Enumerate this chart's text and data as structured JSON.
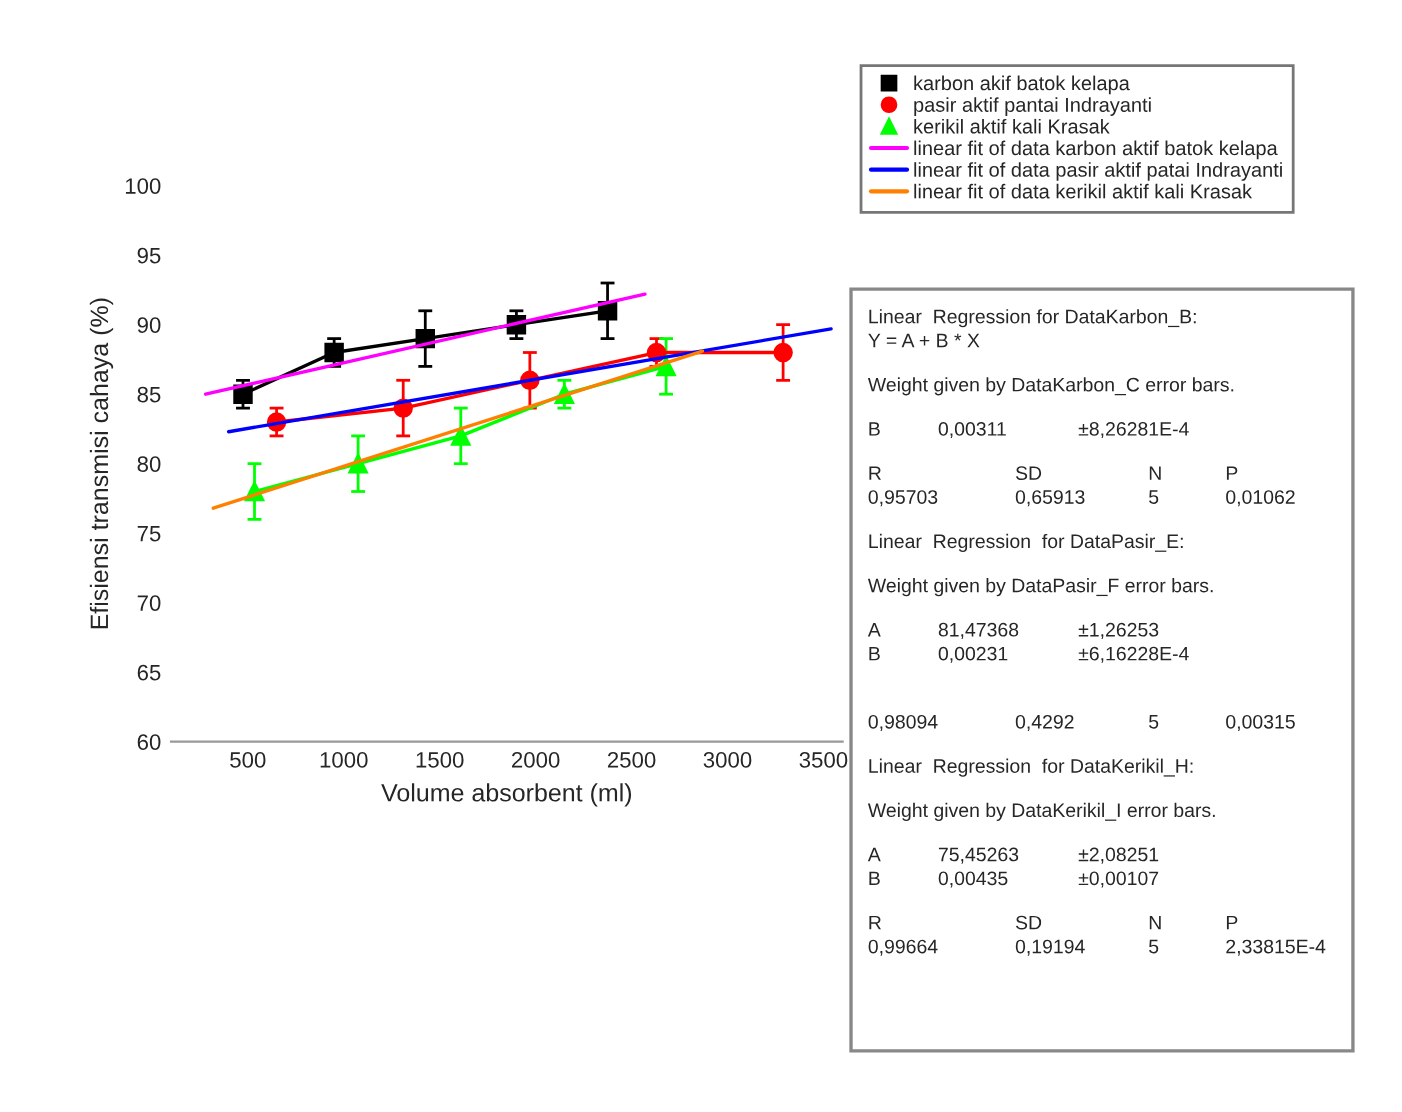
{
  "chart_data": {
    "type": "line",
    "xlabel": "Volume absorbent (ml)",
    "ylabel": "Efisiensi transmisi cahaya (%)",
    "xlim": [
      100,
      3600
    ],
    "xticks": [
      500,
      1000,
      1500,
      2000,
      2500,
      3000,
      3500
    ],
    "ylim": [
      60,
      100
    ],
    "yticks": [
      60,
      65,
      70,
      75,
      80,
      85,
      90,
      95,
      100
    ],
    "grid": false,
    "legend": "top right",
    "line_style": "solid",
    "series": [
      {
        "name": "karbon akif batok kelapa",
        "color": "#000000",
        "marker": "square",
        "x": [
          475,
          950,
          1425,
          1900,
          2375
        ],
        "values": [
          85,
          88,
          89,
          90,
          91
        ],
        "errors": [
          1,
          1,
          2,
          1,
          2
        ]
      },
      {
        "name": "pasir aktif pantai Indrayanti",
        "color": "#ff0000",
        "marker": "circle",
        "x": [
          650,
          1310,
          1970,
          2630,
          3290
        ],
        "values": [
          83,
          84,
          86,
          88,
          88
        ],
        "errors": [
          1,
          2,
          2,
          1,
          2
        ]
      },
      {
        "name": "kerikil aktif kali Krasak",
        "color": "#00ff00",
        "marker": "triangle",
        "x": [
          535,
          1075,
          1610,
          2150,
          2680
        ],
        "values": [
          78,
          80,
          82,
          85,
          87
        ],
        "errors": [
          2,
          2,
          2,
          1,
          2
        ]
      },
      {
        "name": "linear fit of data karbon aktif batok kelapa",
        "color": "#ff00ff",
        "marker": "none",
        "x": [
          280,
          2570
        ],
        "values": [
          85.0,
          92.2
        ]
      },
      {
        "name": "linear fit of data pasir aktif patai Indrayanti",
        "color": "#0000ff",
        "marker": "none",
        "x": [
          400,
          3540
        ],
        "values": [
          82.3,
          89.7
        ]
      },
      {
        "name": "linear fit of data kerikil aktif kali Krasak",
        "color": "#ff8000",
        "marker": "none",
        "x": [
          320,
          2870
        ],
        "values": [
          76.8,
          88.1
        ]
      }
    ],
    "annotations": [
      "Linear  Regression for DataKarbon_B:\nY = A + B * X",
      "Weight given by DataKarbon_C error bars.",
      "B\t0,00311\t±8,26281E-4",
      "R\tSD\tN\tP\n0,95703\t0,65913\t5\t0,01062",
      "Linear  Regression  for DataPasir_E:",
      "Weight given by DataPasir_F error bars.",
      "A\t81,47368\t±1,26253\nB\t0,00231\t±6,16228E-4",
      "\n0,98094\t0,4292\t5\t0,00315",
      "Linear  Regression  for DataKerikil_H:",
      "Weight given by DataKerikil_I error bars.",
      "A\t75,45263\t±2,08251\nB\t0,00435\t±0,00107",
      "R\tSD\tN\tP\n0,99664\t0,19194\t5\t2,33815E-4"
    ]
  }
}
